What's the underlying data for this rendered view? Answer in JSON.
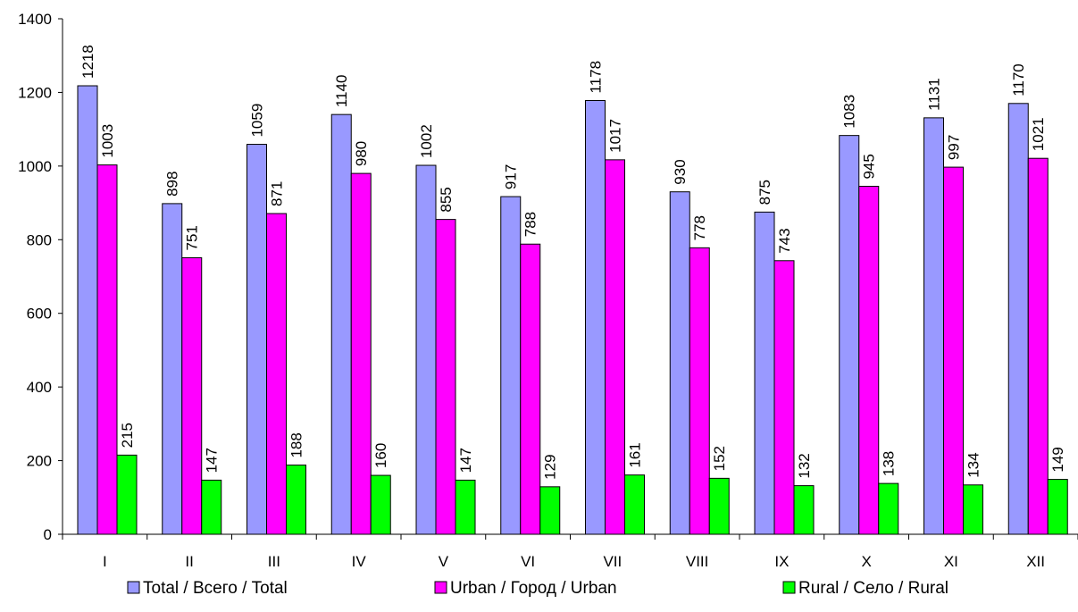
{
  "chart_data": {
    "type": "bar",
    "title": "",
    "xlabel": "",
    "ylabel": "",
    "ylim": [
      0,
      1400
    ],
    "yticks": [
      "0",
      "200",
      "400",
      "600",
      "800",
      "1000",
      "1200",
      "1400"
    ],
    "categories": [
      "I",
      "II",
      "III",
      "IV",
      "V",
      "VI",
      "VII",
      "VIII",
      "IX",
      "X",
      "XI",
      "XII"
    ],
    "series": [
      {
        "name": "Total / Всего / Total",
        "color": "#9999ff",
        "values": [
          1218,
          898,
          1059,
          1140,
          1002,
          917,
          1178,
          930,
          875,
          1083,
          1131,
          1170
        ],
        "labels": [
          "1218",
          "898",
          "1059",
          "1140",
          "1002",
          "917",
          "1178",
          "930",
          "875",
          "1083",
          "1131",
          "1170"
        ]
      },
      {
        "name": "Urban / Город / Urban",
        "color": "#ff00ff",
        "values": [
          1003,
          751,
          871,
          980,
          855,
          788,
          1017,
          778,
          743,
          945,
          997,
          1021
        ],
        "labels": [
          "1003",
          "751",
          "871",
          "980",
          "855",
          "788",
          "1017",
          "778",
          "743",
          "945",
          "997",
          "1021"
        ]
      },
      {
        "name": "Rural / Село / Rural",
        "color": "#00ff00",
        "values": [
          215,
          147,
          188,
          160,
          147,
          129,
          161,
          152,
          132,
          138,
          134,
          149
        ],
        "labels": [
          "215",
          "147",
          "188",
          "160",
          "147",
          "129",
          "161",
          "152",
          "132",
          "138",
          "134",
          "149"
        ]
      }
    ],
    "grid": false,
    "legend": "bottom",
    "data_labels": "rotated-vertical"
  }
}
